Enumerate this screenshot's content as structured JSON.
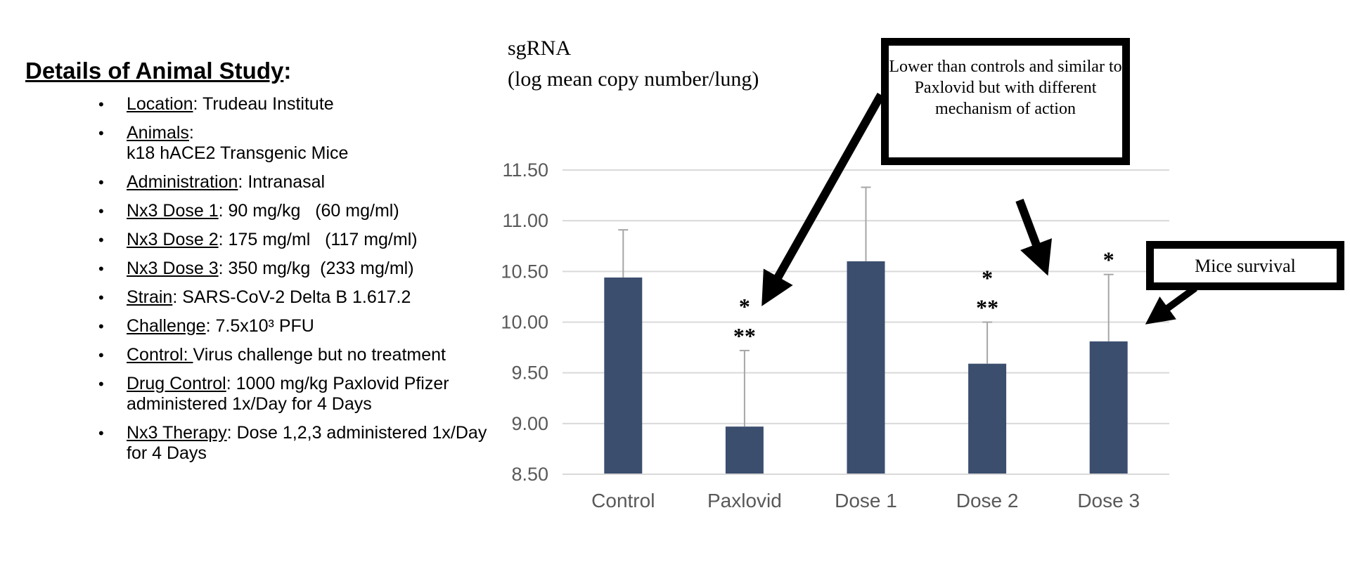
{
  "details": {
    "title": "Details of Animal Study",
    "title_suffix": ":",
    "items": [
      {
        "key": "Location",
        "sep": ": ",
        "value": "Trudeau Institute"
      },
      {
        "key": "Animals",
        "sep": ": ",
        "value": "k18 hACE2 Transgenic Mice"
      },
      {
        "key": "Administration",
        "sep": ": ",
        "value": "Intranasal"
      },
      {
        "key": "Nx3 Dose 1",
        "sep": ": ",
        "value": "90 mg/kg   (60 mg/ml)"
      },
      {
        "key": "Nx3 Dose 2",
        "sep": ": ",
        "value": "175 mg/ml   (117 mg/ml)"
      },
      {
        "key": "Nx3 Dose 3",
        "sep": ": ",
        "value": "350 mg/kg  (233 mg/ml)"
      },
      {
        "key": "Strain",
        "sep": ": ",
        "value": "SARS-CoV-2 Delta B 1.617.2"
      },
      {
        "key": "Challenge",
        "sep": ": ",
        "value": "7.5x10³ PFU"
      },
      {
        "key": "Control: ",
        "sep": "",
        "value": "Virus challenge but no treatment"
      },
      {
        "key": "Drug Control",
        "sep": ": ",
        "value": "1000 mg/kg Paxlovid Pfizer  administered 1x/Day for 4 Days"
      },
      {
        "key": "Nx3 Therapy",
        "sep": ": ",
        "value": "Dose 1,2,3 administered 1x/Day for 4 Days"
      }
    ]
  },
  "chart_data": {
    "type": "bar",
    "ylabel_line1": "sgRNA",
    "ylabel_line2": "(log mean copy number/lung)",
    "categories": [
      "Control",
      "Paxlovid",
      "Dose 1",
      "Dose 2",
      "Dose 3"
    ],
    "values": [
      10.44,
      8.97,
      10.6,
      9.59,
      9.81
    ],
    "error_upper": [
      10.91,
      9.72,
      11.33,
      10.0,
      10.47
    ],
    "significance": [
      [],
      [
        "*",
        "**"
      ],
      [],
      [
        "*",
        "**"
      ],
      [
        "*"
      ]
    ],
    "ylim": [
      8.5,
      11.5
    ],
    "yticks": [
      "8.50",
      "9.00",
      "9.50",
      "10.00",
      "10.50",
      "11.00",
      "11.50"
    ],
    "bar_color": "#3b4e6e",
    "grid": true,
    "annotations": [
      {
        "text": "Lower than controls and similar to Paxlovid but with different mechanism of action"
      },
      {
        "text": "Mice survival"
      }
    ]
  }
}
